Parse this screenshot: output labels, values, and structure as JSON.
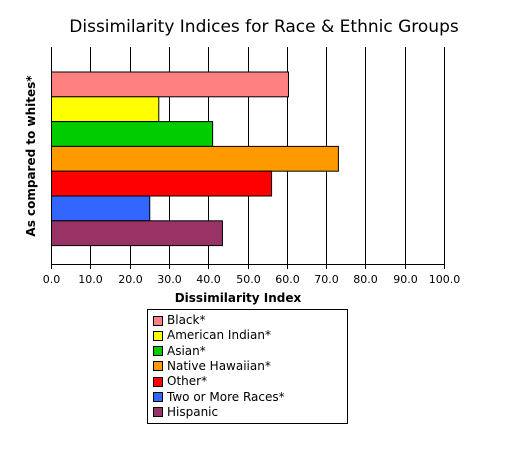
{
  "chart_data": {
    "type": "bar",
    "orientation": "horizontal",
    "title": "Dissimilarity Indices for Race & Ethnic Groups",
    "xlabel": "Dissimilarity Index",
    "ylabel": "As compared to whites*",
    "xlim": [
      0,
      100
    ],
    "x_ticks": [
      "0.0",
      "10.0",
      "20.0",
      "30.0",
      "40.0",
      "50.0",
      "60.0",
      "70.0",
      "80.0",
      "90.0",
      "100.0"
    ],
    "grid": "vertical",
    "legend_position": "bottom",
    "categories": [
      "Black*",
      "American Indian*",
      "Asian*",
      "Native Hawaiian*",
      "Other*",
      "Two or More Races*",
      "Hispanic"
    ],
    "values": [
      60.3,
      27.3,
      41.0,
      73.0,
      56.0,
      25.0,
      43.5
    ],
    "colors": [
      "#ff8080",
      "#ffff00",
      "#00cc00",
      "#ff9900",
      "#ff0000",
      "#3366ff",
      "#993366"
    ]
  }
}
